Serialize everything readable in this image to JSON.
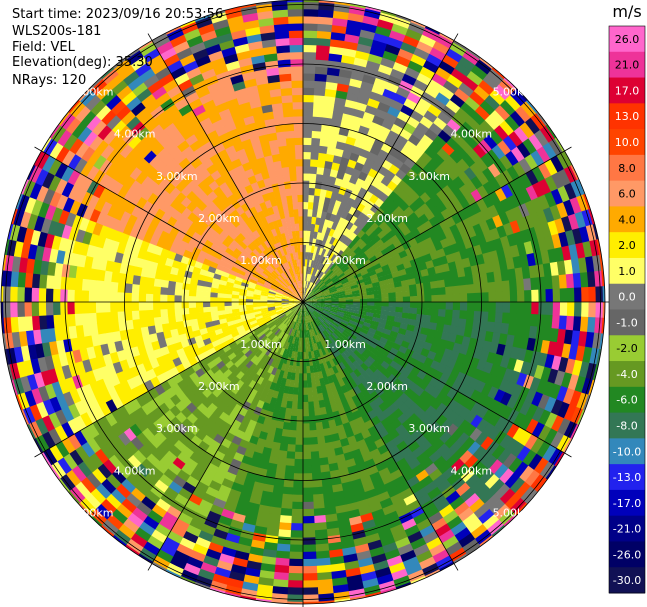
{
  "header": {
    "start_time": "Start time: 2023/09/16 20:53:56",
    "instrument": "WLS200s-181",
    "field": "Field: VEL",
    "elevation": "Elevation(deg): 35.30",
    "nrays": "NRays: 120"
  },
  "chart_data": {
    "type": "heatmap",
    "subtype": "radar-ppi",
    "field": "VEL",
    "units": "m/s",
    "elevation_deg": 35.3,
    "n_rays": 120,
    "range_rings_km": [
      1.0,
      2.0,
      3.0,
      4.0,
      5.0
    ],
    "range_labels": [
      "1.00km",
      "2.00km",
      "3.00km",
      "4.00km",
      "5.00km"
    ],
    "max_range_km": 5.5,
    "spokes_deg": [
      0,
      30,
      60,
      90,
      120,
      150,
      180,
      210,
      240,
      270,
      300,
      330
    ],
    "colorbar": {
      "unit_label": "m/s",
      "ticks": [
        "26.0",
        "21.0",
        "17.0",
        "13.0",
        "10.0",
        "8.0",
        "6.0",
        "4.0",
        "2.0",
        "1.0",
        "0.0",
        "-1.0",
        "-2.0",
        "-4.0",
        "-6.0",
        "-8.0",
        "-10.0",
        "-13.0",
        "-17.0",
        "-21.0",
        "-26.0",
        "-30.0"
      ],
      "colors": [
        "#ff66cc",
        "#ee3399",
        "#dd0033",
        "#ff3300",
        "#ff4400",
        "#ff7744",
        "#ff9966",
        "#ffaa00",
        "#ffee00",
        "#ffff66",
        "#777777",
        "#666666",
        "#99cc33",
        "#669922",
        "#228822",
        "#337755",
        "#3388bb",
        "#2222ee",
        "#0000bb",
        "#000088",
        "#000066",
        "#111155"
      ]
    },
    "sectors": [
      {
        "azimuth_from_deg": 290,
        "azimuth_to_deg": 360,
        "velocity_ms": 6,
        "description": "orange"
      },
      {
        "azimuth_from_deg": 240,
        "azimuth_to_deg": 290,
        "velocity_ms": 2,
        "description": "yellow"
      },
      {
        "azimuth_from_deg": 0,
        "azimuth_to_deg": 40,
        "velocity_ms": 1,
        "description": "yellow/gray"
      },
      {
        "azimuth_from_deg": 40,
        "azimuth_to_deg": 90,
        "velocity_ms": -4,
        "description": "olive green"
      },
      {
        "azimuth_from_deg": 90,
        "azimuth_to_deg": 150,
        "velocity_ms": -6,
        "description": "dark green"
      },
      {
        "azimuth_from_deg": 150,
        "azimuth_to_deg": 200,
        "velocity_ms": -4,
        "description": "olive"
      },
      {
        "azimuth_from_deg": 200,
        "azimuth_to_deg": 240,
        "velocity_ms": -2,
        "description": "light green / gray"
      }
    ],
    "noise_start_km": 4.3
  }
}
